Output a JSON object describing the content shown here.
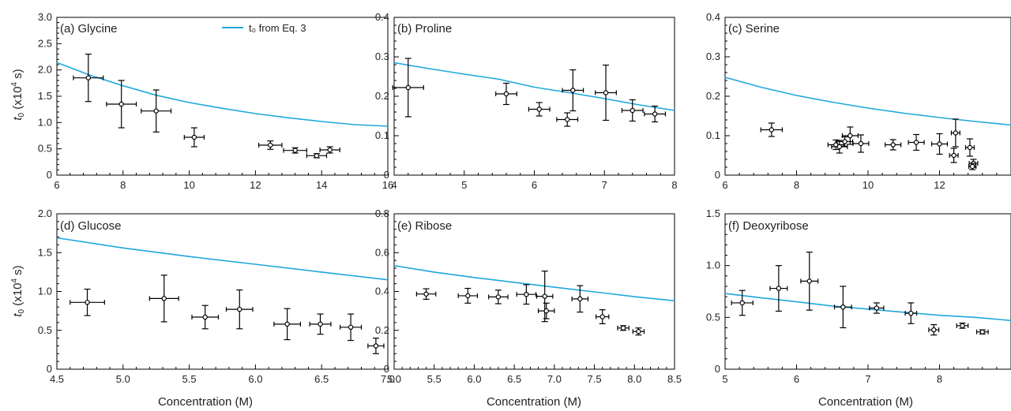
{
  "figure": {
    "legend_label": "t₀ from Eq. 3",
    "curve_color": "#1fa8dc",
    "marker_color": "#000000"
  },
  "chart_data": [
    {
      "type": "scatter",
      "title": "(a) Glycine",
      "xlabel": "",
      "ylabel": "t0 (x10^4 s)",
      "xlim": [
        6,
        16
      ],
      "ylim": [
        0,
        3.0
      ],
      "xticks": [
        "6",
        "8",
        "10",
        "12",
        "14",
        "16"
      ],
      "yticks": [
        "0",
        "0.5",
        "1.0",
        "1.5",
        "2.0",
        "2.5",
        "3.0"
      ],
      "series": [
        {
          "name": "",
          "points": [
            {
              "x": 6.95,
              "y": 1.85,
              "xerr": 0.45,
              "yerr": 0.45
            },
            {
              "x": 7.95,
              "y": 1.35,
              "xerr": 0.45,
              "yerr": 0.45
            },
            {
              "x": 9.0,
              "y": 1.22,
              "xerr": 0.45,
              "yerr": 0.4
            },
            {
              "x": 10.15,
              "y": 0.72,
              "xerr": 0.3,
              "yerr": 0.18
            },
            {
              "x": 12.45,
              "y": 0.57,
              "xerr": 0.35,
              "yerr": 0.08
            },
            {
              "x": 13.2,
              "y": 0.47,
              "xerr": 0.35,
              "yerr": 0.05
            },
            {
              "x": 13.85,
              "y": 0.37,
              "xerr": 0.3,
              "yerr": 0.04
            },
            {
              "x": 14.25,
              "y": 0.48,
              "xerr": 0.3,
              "yerr": 0.06
            }
          ]
        },
        {
          "name": "t₀ from Eq. 3",
          "curve": [
            [
              6,
              2.14
            ],
            [
              7,
              1.9
            ],
            [
              8,
              1.7
            ],
            [
              9,
              1.52
            ],
            [
              10,
              1.38
            ],
            [
              11,
              1.27
            ],
            [
              12,
              1.17
            ],
            [
              13,
              1.09
            ],
            [
              14,
              1.02
            ],
            [
              15,
              0.96
            ],
            [
              16,
              0.93
            ]
          ]
        }
      ],
      "legend": "top-right"
    },
    {
      "type": "scatter",
      "title": "(b) Proline",
      "xlabel": "",
      "ylabel": "",
      "xlim": [
        4,
        8
      ],
      "ylim": [
        0,
        0.4
      ],
      "xticks": [
        "4",
        "5",
        "6",
        "7",
        "8"
      ],
      "yticks": [
        "0",
        "0.1",
        "0.2",
        "0.3",
        "0.4"
      ],
      "series": [
        {
          "name": "",
          "points": [
            {
              "x": 4.2,
              "y": 0.222,
              "xerr": 0.22,
              "yerr": 0.074
            },
            {
              "x": 5.6,
              "y": 0.206,
              "xerr": 0.15,
              "yerr": 0.027
            },
            {
              "x": 6.07,
              "y": 0.167,
              "xerr": 0.15,
              "yerr": 0.017
            },
            {
              "x": 6.47,
              "y": 0.141,
              "xerr": 0.15,
              "yerr": 0.017
            },
            {
              "x": 6.55,
              "y": 0.215,
              "xerr": 0.15,
              "yerr": 0.052
            },
            {
              "x": 7.02,
              "y": 0.209,
              "xerr": 0.15,
              "yerr": 0.07
            },
            {
              "x": 7.4,
              "y": 0.164,
              "xerr": 0.15,
              "yerr": 0.027
            },
            {
              "x": 7.72,
              "y": 0.155,
              "xerr": 0.15,
              "yerr": 0.02
            }
          ]
        },
        {
          "name": "",
          "curve": [
            [
              4,
              0.285
            ],
            [
              4.5,
              0.27
            ],
            [
              5,
              0.256
            ],
            [
              5.5,
              0.243
            ],
            [
              6,
              0.223
            ],
            [
              6.5,
              0.209
            ],
            [
              7,
              0.194
            ],
            [
              7.5,
              0.178
            ],
            [
              8,
              0.164
            ]
          ]
        }
      ]
    },
    {
      "type": "scatter",
      "title": "(c) Serine",
      "xlabel": "",
      "ylabel": "",
      "xlim": [
        6,
        14
      ],
      "ylim": [
        0,
        0.4
      ],
      "xticks": [
        "6",
        "8",
        "10",
        "12",
        "14"
      ],
      "yticks": [
        "0",
        "0.1",
        "0.2",
        "0.3",
        "0.4"
      ],
      "series": [
        {
          "name": "",
          "points": [
            {
              "x": 7.3,
              "y": 0.115,
              "xerr": 0.3,
              "yerr": 0.017
            },
            {
              "x": 9.1,
              "y": 0.077,
              "xerr": 0.22,
              "yerr": 0.012
            },
            {
              "x": 9.2,
              "y": 0.072,
              "xerr": 0.22,
              "yerr": 0.016
            },
            {
              "x": 9.35,
              "y": 0.085,
              "xerr": 0.22,
              "yerr": 0.012
            },
            {
              "x": 9.5,
              "y": 0.1,
              "xerr": 0.22,
              "yerr": 0.022
            },
            {
              "x": 9.8,
              "y": 0.08,
              "xerr": 0.22,
              "yerr": 0.022
            },
            {
              "x": 10.7,
              "y": 0.077,
              "xerr": 0.22,
              "yerr": 0.013
            },
            {
              "x": 11.35,
              "y": 0.083,
              "xerr": 0.22,
              "yerr": 0.02
            },
            {
              "x": 12.0,
              "y": 0.079,
              "xerr": 0.22,
              "yerr": 0.026
            },
            {
              "x": 12.4,
              "y": 0.05,
              "xerr": 0.12,
              "yerr": 0.018
            },
            {
              "x": 12.45,
              "y": 0.107,
              "xerr": 0.12,
              "yerr": 0.035
            },
            {
              "x": 12.85,
              "y": 0.07,
              "xerr": 0.12,
              "yerr": 0.022
            },
            {
              "x": 12.95,
              "y": 0.03,
              "xerr": 0.12,
              "yerr": 0.01
            },
            {
              "x": 12.92,
              "y": 0.022,
              "xerr": 0.1,
              "yerr": 0.008
            }
          ]
        },
        {
          "name": "",
          "curve": [
            [
              6,
              0.248
            ],
            [
              7,
              0.223
            ],
            [
              8,
              0.202
            ],
            [
              9,
              0.185
            ],
            [
              10,
              0.17
            ],
            [
              11,
              0.157
            ],
            [
              12,
              0.146
            ],
            [
              13,
              0.136
            ],
            [
              14,
              0.127
            ]
          ]
        }
      ]
    },
    {
      "type": "scatter",
      "title": "(d) Glucose",
      "xlabel": "Concentration (M)",
      "ylabel": "t0 (x10^4 s)",
      "xlim": [
        4.5,
        7.0
      ],
      "ylim": [
        0,
        2.0
      ],
      "xticks": [
        "4.5",
        "5.0",
        "5.5",
        "6.0",
        "6.5",
        "7.0"
      ],
      "yticks": [
        "0",
        "0.5",
        "1.0",
        "1.5",
        "2.0"
      ],
      "series": [
        {
          "name": "",
          "points": [
            {
              "x": 4.73,
              "y": 0.86,
              "xerr": 0.13,
              "yerr": 0.17
            },
            {
              "x": 5.31,
              "y": 0.91,
              "xerr": 0.11,
              "yerr": 0.3
            },
            {
              "x": 5.62,
              "y": 0.67,
              "xerr": 0.1,
              "yerr": 0.15
            },
            {
              "x": 5.88,
              "y": 0.77,
              "xerr": 0.1,
              "yerr": 0.25
            },
            {
              "x": 6.24,
              "y": 0.58,
              "xerr": 0.1,
              "yerr": 0.2
            },
            {
              "x": 6.49,
              "y": 0.58,
              "xerr": 0.08,
              "yerr": 0.13
            },
            {
              "x": 6.72,
              "y": 0.54,
              "xerr": 0.08,
              "yerr": 0.17
            },
            {
              "x": 6.91,
              "y": 0.3,
              "xerr": 0.06,
              "yerr": 0.1
            }
          ]
        },
        {
          "name": "",
          "curve": [
            [
              4.5,
              1.69
            ],
            [
              5.0,
              1.56
            ],
            [
              5.5,
              1.45
            ],
            [
              6.0,
              1.35
            ],
            [
              6.5,
              1.25
            ],
            [
              7.0,
              1.15
            ]
          ]
        }
      ]
    },
    {
      "type": "scatter",
      "title": "(e) Ribose",
      "xlabel": "Concentration (M)",
      "ylabel": "",
      "xlim": [
        5.0,
        8.5
      ],
      "ylim": [
        0,
        0.8
      ],
      "xticks": [
        "5.0",
        "5.5",
        "6.0",
        "6.5",
        "7.0",
        "7.5",
        "8.0",
        "8.5"
      ],
      "yticks": [
        "0",
        "0.2",
        "0.4",
        "0.6",
        "0.8"
      ],
      "series": [
        {
          "name": "",
          "points": [
            {
              "x": 5.4,
              "y": 0.387,
              "xerr": 0.12,
              "yerr": 0.027
            },
            {
              "x": 5.92,
              "y": 0.378,
              "xerr": 0.12,
              "yerr": 0.038
            },
            {
              "x": 6.3,
              "y": 0.372,
              "xerr": 0.12,
              "yerr": 0.035
            },
            {
              "x": 6.65,
              "y": 0.385,
              "xerr": 0.12,
              "yerr": 0.05
            },
            {
              "x": 6.88,
              "y": 0.375,
              "xerr": 0.1,
              "yerr": 0.13
            },
            {
              "x": 6.9,
              "y": 0.3,
              "xerr": 0.1,
              "yerr": 0.04
            },
            {
              "x": 7.32,
              "y": 0.362,
              "xerr": 0.1,
              "yerr": 0.068
            },
            {
              "x": 7.6,
              "y": 0.27,
              "xerr": 0.08,
              "yerr": 0.036
            },
            {
              "x": 7.86,
              "y": 0.212,
              "xerr": 0.07,
              "yerr": 0.012
            },
            {
              "x": 8.05,
              "y": 0.194,
              "xerr": 0.07,
              "yerr": 0.018
            }
          ]
        },
        {
          "name": "",
          "curve": [
            [
              5.0,
              0.533
            ],
            [
              5.5,
              0.5
            ],
            [
              6.0,
              0.472
            ],
            [
              6.5,
              0.447
            ],
            [
              7.0,
              0.422
            ],
            [
              7.5,
              0.398
            ],
            [
              8.0,
              0.373
            ],
            [
              8.5,
              0.352
            ]
          ]
        }
      ]
    },
    {
      "type": "scatter",
      "title": "(f) Deoxyribose",
      "xlabel": "Concentration (M)",
      "ylabel": "",
      "xlim": [
        5,
        9
      ],
      "ylim": [
        0,
        1.5
      ],
      "xticks": [
        "5",
        "6",
        "7",
        "8",
        "9"
      ],
      "yticks": [
        "0",
        "0.5",
        "1.0",
        "1.5"
      ],
      "series": [
        {
          "name": "",
          "points": [
            {
              "x": 5.24,
              "y": 0.64,
              "xerr": 0.15,
              "yerr": 0.12
            },
            {
              "x": 5.75,
              "y": 0.78,
              "xerr": 0.12,
              "yerr": 0.22
            },
            {
              "x": 6.18,
              "y": 0.85,
              "xerr": 0.12,
              "yerr": 0.28
            },
            {
              "x": 6.65,
              "y": 0.6,
              "xerr": 0.12,
              "yerr": 0.2
            },
            {
              "x": 7.12,
              "y": 0.59,
              "xerr": 0.1,
              "yerr": 0.05
            },
            {
              "x": 7.6,
              "y": 0.54,
              "xerr": 0.08,
              "yerr": 0.1
            },
            {
              "x": 7.92,
              "y": 0.38,
              "xerr": 0.07,
              "yerr": 0.05
            },
            {
              "x": 8.32,
              "y": 0.42,
              "xerr": 0.08,
              "yerr": 0.025
            },
            {
              "x": 8.6,
              "y": 0.36,
              "xerr": 0.08,
              "yerr": 0.02
            }
          ]
        },
        {
          "name": "",
          "curve": [
            [
              5,
              0.73
            ],
            [
              5.5,
              0.69
            ],
            [
              6,
              0.65
            ],
            [
              6.5,
              0.61
            ],
            [
              7,
              0.58
            ],
            [
              7.5,
              0.55
            ],
            [
              8,
              0.52
            ],
            [
              8.5,
              0.5
            ],
            [
              9,
              0.47
            ]
          ]
        }
      ]
    }
  ]
}
